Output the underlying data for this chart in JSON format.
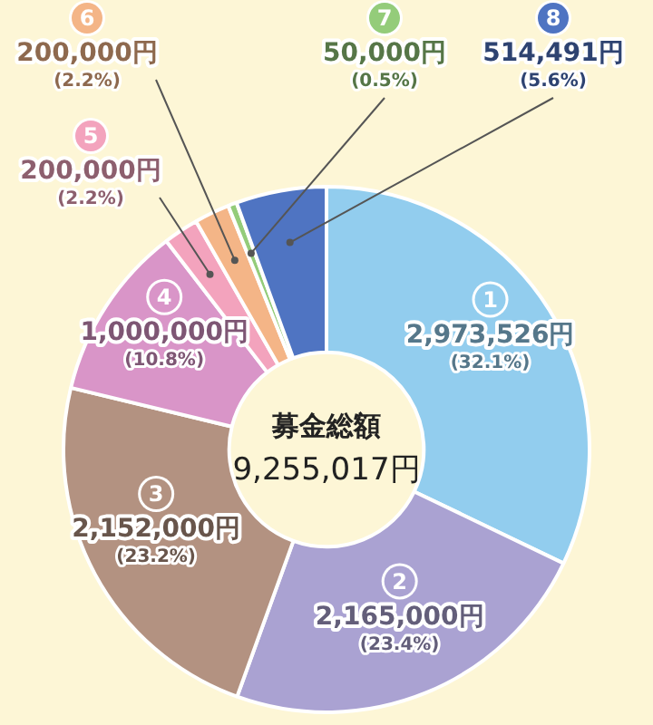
{
  "chart_data": {
    "type": "donut",
    "title": "募金総額",
    "subtitle": "9,255,017円",
    "categories": [
      "1",
      "2",
      "3",
      "4",
      "5",
      "6",
      "7",
      "8"
    ],
    "values": [
      2973526,
      2165000,
      2152000,
      1000000,
      200000,
      200000,
      50000,
      514491
    ],
    "colors": [
      "#92cdee",
      "#aaa2d2",
      "#b39281",
      "#d995c8",
      "#f3a3bd",
      "#f4b587",
      "#94cc7a",
      "#4f74c2"
    ],
    "value_labels": [
      "2,973,526円\n(32.1%)",
      "2,165,000円\n(23.4%)",
      "2,152,000円\n(23.2%)",
      "1,000,000円\n(10.8%)",
      "200,000円\n(2.2%)",
      "200,000円\n(2.2%)",
      "50,000円\n(0.5%)",
      "514,491円\n(5.6%)"
    ]
  }
}
